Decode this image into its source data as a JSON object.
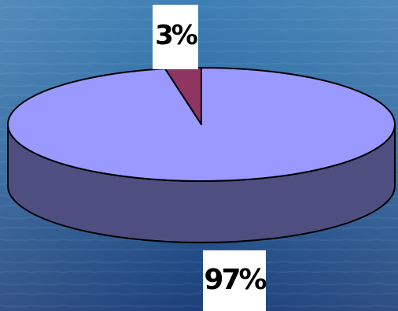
{
  "chart_data": {
    "type": "pie",
    "style": "3d",
    "slices": [
      {
        "label": "3%",
        "value": 3,
        "color": "#8e3561"
      },
      {
        "label": "97%",
        "value": 97,
        "color": "#9999ff"
      }
    ],
    "side_color": "#4e4f80",
    "background_color": "#2e6aa3",
    "legend": "none"
  }
}
